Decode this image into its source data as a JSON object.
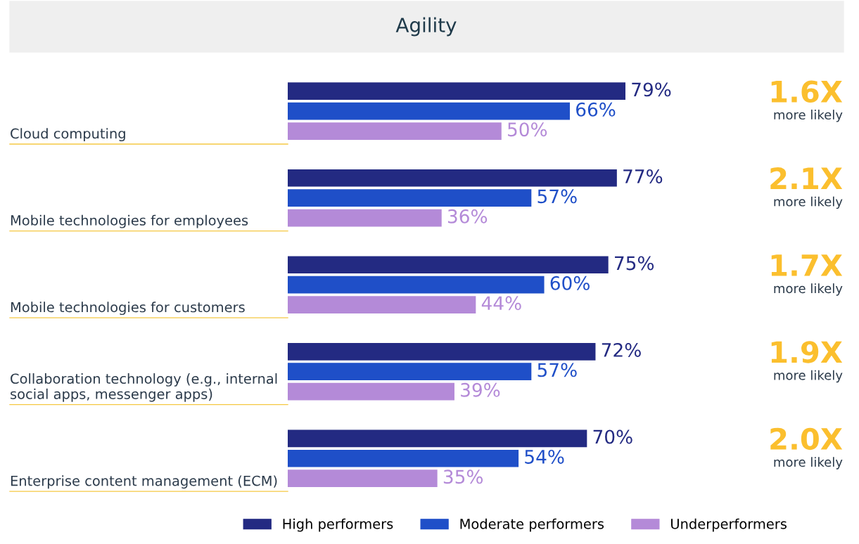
{
  "chart_data": {
    "type": "bar",
    "orientation": "horizontal",
    "title": "Agility",
    "categories": [
      "Cloud computing",
      "Mobile technologies for employees",
      "Mobile technologies for customers",
      "Collaboration technology (e.g., internal social apps, messenger apps)",
      "Enterprise content management (ECM)"
    ],
    "series": [
      {
        "name": "High performers",
        "color": "#232a82",
        "values": [
          79,
          77,
          75,
          72,
          70
        ],
        "value_labels": [
          "79%",
          "77%",
          "75%",
          "72%",
          "70%"
        ]
      },
      {
        "name": "Moderate performers",
        "color": "#1f4fc8",
        "values": [
          66,
          57,
          60,
          57,
          54
        ],
        "value_labels": [
          "66%",
          "57%",
          "60%",
          "57%",
          "54%"
        ]
      },
      {
        "name": "Underperformers",
        "color": "#b48ad8",
        "values": [
          50,
          36,
          44,
          39,
          35
        ],
        "value_labels": [
          "50%",
          "36%",
          "44%",
          "39%",
          "35%"
        ]
      }
    ],
    "annotations": [
      "1.6X more likely",
      "2.1X more likely",
      "1.7X more likely",
      "1.9X more likely",
      "2.0X more likely"
    ],
    "legend": "bottom"
  }
}
